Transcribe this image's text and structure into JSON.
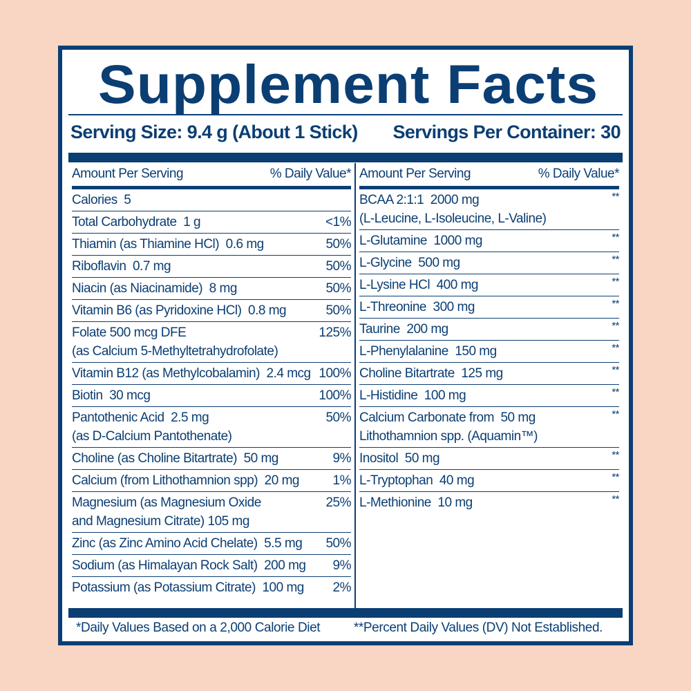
{
  "title": "Supplement Facts",
  "serving_size": "Serving Size: 9.4 g (About 1 Stick)",
  "servings_per_container": "Servings Per Container: 30",
  "header": {
    "amount": "Amount Per Serving",
    "dv": "% Daily Value*"
  },
  "left": [
    {
      "name": "Calories  5",
      "dv": ""
    },
    {
      "name": "Total Carbohydrate  1 g",
      "dv": "<1%"
    },
    {
      "name": "Thiamin (as Thiamine HCl)  0.6 mg",
      "dv": "50%"
    },
    {
      "name": "Riboflavin  0.7 mg",
      "dv": "50%"
    },
    {
      "name": "Niacin (as Niacinamide)  8 mg",
      "dv": "50%"
    },
    {
      "name": "Vitamin B6 (as Pyridoxine HCl)  0.8 mg",
      "dv": "50%"
    },
    {
      "name": "Folate 500 mcg DFE",
      "name2": "(as Calcium 5-Methyltetrahydrofolate)",
      "dv": "125%"
    },
    {
      "name": "Vitamin B12 (as Methylcobalamin)  2.4 mcg",
      "dv": "100%"
    },
    {
      "name": "Biotin  30 mcg",
      "dv": "100%"
    },
    {
      "name": "Pantothenic Acid  2.5 mg",
      "name2": "(as D-Calcium Pantothenate)",
      "dv": "50%"
    },
    {
      "name": "Choline (as Choline Bitartrate)  50 mg",
      "dv": "9%"
    },
    {
      "name": "Calcium (from Lithothamnion spp)  20 mg",
      "dv": "1%"
    },
    {
      "name": "Magnesium (as Magnesium Oxide",
      "name2": "and Magnesium Citrate)  105 mg",
      "dv": "25%"
    },
    {
      "name": "Zinc (as Zinc Amino Acid Chelate)  5.5 mg",
      "dv": "50%"
    },
    {
      "name": "Sodium (as Himalayan Rock Salt)  200 mg",
      "dv": "9%"
    },
    {
      "name": "Potassium (as Potassium Citrate)  100 mg",
      "dv": "2%"
    }
  ],
  "right": [
    {
      "name": "BCAA 2:1:1  2000 mg",
      "name2": "(L-Leucine, L-Isoleucine, L-Valine)",
      "dv": "**"
    },
    {
      "name": "L-Glutamine  1000 mg",
      "dv": "**"
    },
    {
      "name": "L-Glycine  500 mg",
      "dv": "**"
    },
    {
      "name": "L-Lysine HCl  400 mg",
      "dv": "**"
    },
    {
      "name": "L-Threonine  300 mg",
      "dv": "**"
    },
    {
      "name": "Taurine  200 mg",
      "dv": "**"
    },
    {
      "name": "L-Phenylalanine  150 mg",
      "dv": "**"
    },
    {
      "name": "Choline Bitartrate  125 mg",
      "dv": "**"
    },
    {
      "name": "L-Histidine  100 mg",
      "dv": "**"
    },
    {
      "name": "Calcium Carbonate from  50 mg",
      "name2": "Lithothamnion spp. (Aquamin™)",
      "dv": "**"
    },
    {
      "name": "Inositol  50 mg",
      "dv": "**"
    },
    {
      "name": "L-Tryptophan  40 mg",
      "dv": "**"
    },
    {
      "name": "L-Methionine  10 mg",
      "dv": "**"
    }
  ],
  "footnote_left": "*Daily Values Based on a 2,000 Calorie Diet",
  "footnote_right": "**Percent Daily Values (DV) Not Established.",
  "colors": {
    "navy": "#0b3e73",
    "background": "#f9d5c3"
  }
}
